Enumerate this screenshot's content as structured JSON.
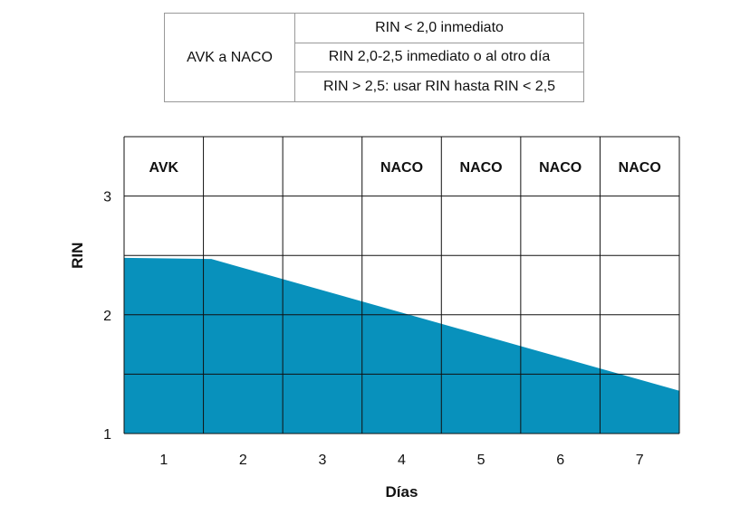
{
  "legend_table": {
    "row_label": "AVK a NACO",
    "rules": [
      "RIN < 2,0 inmediato",
      "RIN 2,0-2,5 inmediato o al otro día",
      "RIN > 2,5: usar RIN hasta RIN < 2,5"
    ]
  },
  "chart_data": {
    "type": "area",
    "xlabel": "Días",
    "ylabel": "RIN",
    "x_ticks": [
      "1",
      "2",
      "3",
      "4",
      "5",
      "6",
      "7"
    ],
    "y_ticks": [
      1,
      2,
      3
    ],
    "ylim": [
      1,
      3.5
    ],
    "column_headers": [
      "AVK",
      "",
      "",
      "NACO",
      "NACO",
      "NACO",
      "NACO"
    ],
    "grid": true,
    "fill_color": "#0891BC",
    "series": [
      {
        "x": [
          0.5,
          1.6,
          7.5
        ],
        "y": [
          2.48,
          2.47,
          1.36
        ]
      }
    ]
  }
}
